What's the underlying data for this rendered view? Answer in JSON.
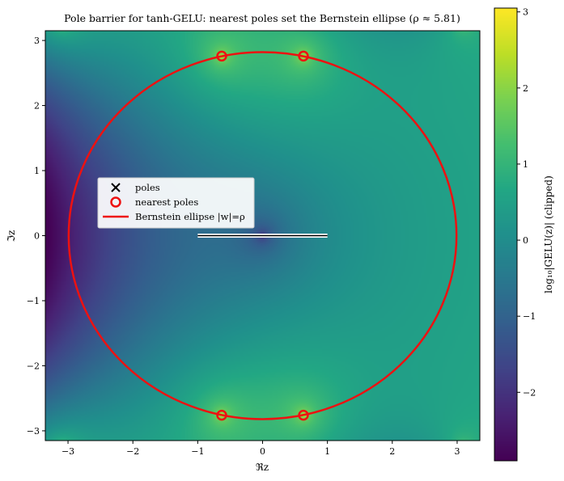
{
  "chart_data": {
    "type": "heatmap",
    "title": "Pole barrier for tanh-GELU: nearest poles set the Bernstein ellipse (ρ ≈ 5.81)",
    "xlabel": "ℜz",
    "ylabel": "ℑz",
    "xlim": [
      -3.35,
      3.35
    ],
    "ylim": [
      -3.15,
      3.15
    ],
    "x_ticks": [
      -3,
      -2,
      -1,
      0,
      1,
      2,
      3
    ],
    "y_ticks": [
      -3,
      -2,
      -1,
      0,
      1,
      2,
      3
    ],
    "x_tick_labels": [
      "−3",
      "−2",
      "−1",
      "0",
      "1",
      "2",
      "3"
    ],
    "y_tick_labels": [
      "−3",
      "−2",
      "−1",
      "0",
      "1",
      "2",
      "3"
    ],
    "grid": false,
    "colormap": "viridis",
    "colorbar": {
      "label": "log₁₀|GELU(z)| (clipped)",
      "range": [
        -2.9,
        3.05
      ],
      "ticks": [
        -2,
        -1,
        0,
        1,
        2,
        3
      ],
      "tick_labels": [
        "−2",
        "−1",
        "0",
        "1",
        "2",
        "3"
      ]
    },
    "nearest_poles": [
      {
        "x": -0.63,
        "y": 2.76
      },
      {
        "x": 0.63,
        "y": 2.76
      },
      {
        "x": -0.63,
        "y": -2.76
      },
      {
        "x": 0.63,
        "y": -2.76
      }
    ],
    "ellipse": {
      "semi_major": 2.99,
      "semi_minor": 2.82
    },
    "interval": [
      -1,
      1
    ],
    "legend": {
      "placement": "center-left",
      "entries": [
        {
          "label": "poles",
          "marker": "x",
          "color": "#000000"
        },
        {
          "label": "nearest poles",
          "marker": "o",
          "color": "#ee1111"
        },
        {
          "label": "Bernstein ellipse |w|=ρ",
          "marker": "line",
          "color": "#ee1111"
        }
      ]
    },
    "colors": {
      "ellipse": "#ee1111",
      "poles": "#ee1111",
      "interval": "#000000"
    }
  }
}
